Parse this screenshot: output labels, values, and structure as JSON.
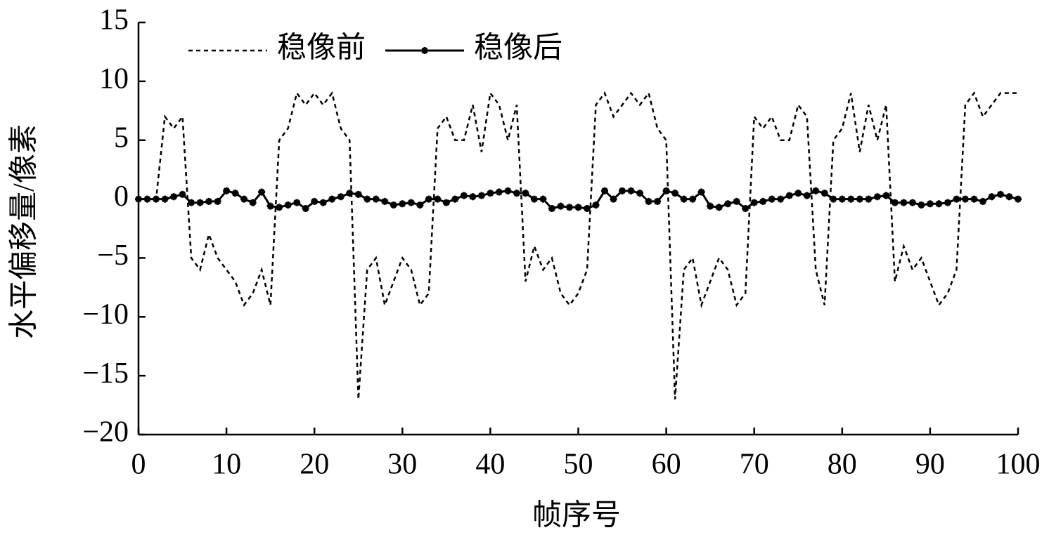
{
  "chart_data": {
    "type": "line",
    "xlabel": "帧序号",
    "ylabel": "水平偏移量/像素",
    "x": [
      0,
      1,
      2,
      3,
      4,
      5,
      6,
      7,
      8,
      9,
      10,
      11,
      12,
      13,
      14,
      15,
      16,
      17,
      18,
      19,
      20,
      21,
      22,
      23,
      24,
      25,
      26,
      27,
      28,
      29,
      30,
      31,
      32,
      33,
      34,
      35,
      36,
      37,
      38,
      39,
      40,
      41,
      42,
      43,
      44,
      45,
      46,
      47,
      48,
      49,
      50,
      51,
      52,
      53,
      54,
      55,
      56,
      57,
      58,
      59,
      60,
      61,
      62,
      63,
      64,
      65,
      66,
      67,
      68,
      69,
      70,
      71,
      72,
      73,
      74,
      75,
      76,
      77,
      78,
      79,
      80,
      81,
      82,
      83,
      84,
      85,
      86,
      87,
      88,
      89,
      90,
      91,
      92,
      93,
      94,
      95,
      96,
      97,
      98,
      99,
      100
    ],
    "series": [
      {
        "name": "稳像前",
        "color": "#000000",
        "dash": true,
        "marker": false,
        "values": [
          0,
          0,
          0,
          7,
          6,
          7,
          -5,
          -6,
          -3,
          -5,
          -6,
          -7,
          -9,
          -8,
          -6,
          -9,
          5,
          6,
          9,
          8,
          9,
          8,
          9,
          6,
          5,
          -17,
          -6,
          -5,
          -9,
          -7,
          -5,
          -6,
          -9,
          -8,
          6,
          7,
          5,
          5,
          8,
          4,
          9,
          8,
          5,
          8,
          -7,
          -4,
          -6,
          -5,
          -8,
          -9,
          -8,
          -6,
          8,
          9,
          7,
          8,
          9,
          8,
          9,
          6,
          5,
          -17,
          -6,
          -5,
          -9,
          -7,
          -5,
          -6,
          -9,
          -8,
          7,
          6,
          7,
          5,
          5,
          8,
          7,
          -6,
          -9,
          5,
          6,
          9,
          4,
          8,
          5,
          8,
          -7,
          -4,
          -6,
          -5,
          -7,
          -9,
          -8,
          -6,
          8,
          9,
          7,
          8,
          9,
          9,
          9
        ]
      },
      {
        "name": "稳像后",
        "color": "#000000",
        "dash": false,
        "marker": true,
        "values": [
          0,
          0,
          0,
          0,
          0.2,
          0.4,
          -0.3,
          -0.3,
          -0.2,
          -0.2,
          0.7,
          0.5,
          0,
          -0.3,
          0.6,
          -0.6,
          -0.7,
          -0.5,
          -0.3,
          -0.8,
          -0.2,
          -0.3,
          0,
          0.2,
          0.5,
          0.4,
          0,
          0,
          -0.2,
          -0.5,
          -0.4,
          -0.3,
          -0.5,
          0,
          0,
          -0.3,
          0,
          0.3,
          0.2,
          0.3,
          0.5,
          0.6,
          0.7,
          0.5,
          0.5,
          0,
          0,
          -0.8,
          -0.6,
          -0.7,
          -0.7,
          -0.8,
          -0.5,
          0.7,
          0,
          0.7,
          0.7,
          0.5,
          -0.2,
          -0.2,
          0.7,
          0.5,
          0,
          0,
          0.6,
          -0.6,
          -0.7,
          -0.4,
          -0.2,
          -0.8,
          -0.3,
          -0.2,
          0,
          0,
          0.3,
          0.5,
          0.3,
          0.7,
          0.5,
          0,
          0,
          0,
          0,
          0,
          0.2,
          0.3,
          -0.3,
          -0.3,
          -0.3,
          -0.5,
          -0.4,
          -0.4,
          -0.3,
          0,
          0,
          0,
          -0.2,
          0.2,
          0.4,
          0.2,
          0
        ]
      }
    ],
    "xlim": [
      0,
      100
    ],
    "xticks": [
      0,
      10,
      20,
      30,
      40,
      50,
      60,
      70,
      80,
      90,
      100
    ],
    "ylim": [
      -20,
      15
    ],
    "yticks": [
      {
        "value": -20,
        "label": "−20"
      },
      {
        "value": -15,
        "label": "−15"
      },
      {
        "value": -10,
        "label": "−10"
      },
      {
        "value": -5,
        "label": "−5"
      },
      0,
      5,
      10,
      15
    ],
    "grid": false,
    "legend": "top-left"
  }
}
